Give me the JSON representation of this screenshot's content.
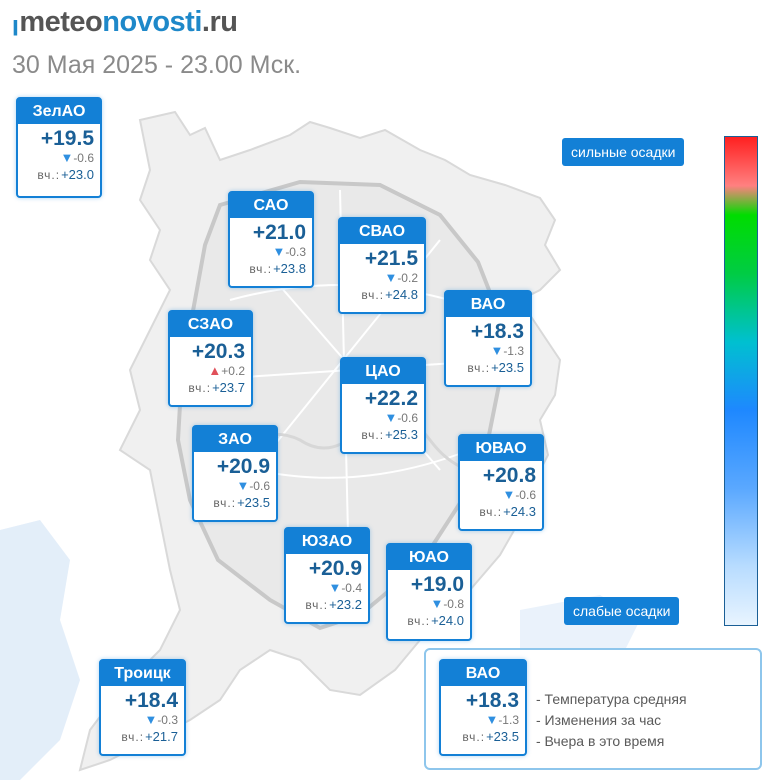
{
  "header": {
    "brand": {
      "mark": "ꞁ",
      "part1": "meteo",
      "part2": "novosti",
      "part3": ".ru"
    },
    "subtitle": "30 Мая 2025 - 23.00 Мск."
  },
  "units": {
    "yesterday_label": "вч.:"
  },
  "districts": [
    {
      "name": "ЗелАО",
      "temp": "+19.5",
      "change": "-0.6",
      "trend": "down",
      "yesterday": "+23.0"
    },
    {
      "name": "САО",
      "temp": "+21.0",
      "change": "-0.3",
      "trend": "down",
      "yesterday": "+23.8"
    },
    {
      "name": "СВАО",
      "temp": "+21.5",
      "change": "-0.2",
      "trend": "down",
      "yesterday": "+24.8"
    },
    {
      "name": "ВАО",
      "temp": "+18.3",
      "change": "-1.3",
      "trend": "down",
      "yesterday": "+23.5"
    },
    {
      "name": "СЗАО",
      "temp": "+20.3",
      "change": "+0.2",
      "trend": "up",
      "yesterday": "+23.7"
    },
    {
      "name": "ЦАО",
      "temp": "+22.2",
      "change": "-0.6",
      "trend": "down",
      "yesterday": "+25.3"
    },
    {
      "name": "ЗАО",
      "temp": "+20.9",
      "change": "-0.6",
      "trend": "down",
      "yesterday": "+23.5"
    },
    {
      "name": "ЮВАО",
      "temp": "+20.8",
      "change": "-0.6",
      "trend": "down",
      "yesterday": "+24.3"
    },
    {
      "name": "ЮЗАО",
      "temp": "+20.9",
      "change": "-0.4",
      "trend": "down",
      "yesterday": "+23.2"
    },
    {
      "name": "ЮАО",
      "temp": "+19.0",
      "change": "-0.8",
      "trend": "down",
      "yesterday": "+24.0"
    },
    {
      "name": "Троицк",
      "temp": "+18.4",
      "change": "-0.3",
      "trend": "down",
      "yesterday": "+21.7"
    }
  ],
  "precip_scale": {
    "top_label": "сильные осадки",
    "bottom_label": "слабые осадки"
  },
  "legend": {
    "sample": {
      "name": "ВАО",
      "temp": "+18.3",
      "change": "-1.3",
      "trend": "down",
      "yesterday": "+23.5"
    },
    "lines": [
      "- Температура средняя",
      "- Изменения за час",
      "- Вчера в это время"
    ]
  },
  "colors": {
    "card_blue": "#1380d6",
    "temp_text": "#1a5f96",
    "arrow_down": "#2f8fe0",
    "arrow_up": "#e0505a"
  }
}
